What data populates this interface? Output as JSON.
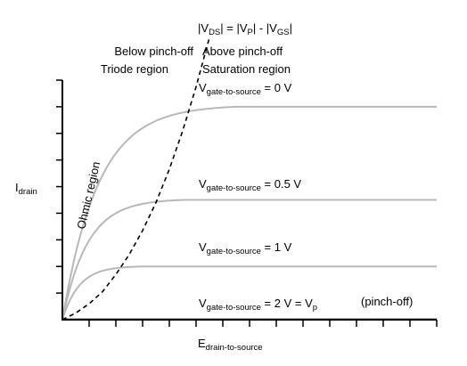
{
  "chart_data": {
    "type": "line",
    "title": "",
    "xlabel": "drain-to-source",
    "xlabel_prefix": "E",
    "ylabel": "drain",
    "ylabel_prefix": "I",
    "xlim": [
      0,
      14
    ],
    "ylim": [
      0,
      9
    ],
    "x_ticks": 14,
    "y_ticks": 9,
    "grid": false,
    "series": [
      {
        "label_prefix": "V",
        "label_sub": "gate-to-source",
        "label_value": " = 0 V",
        "pinch": 4.3,
        "level": 8.0,
        "curve": "saturating"
      },
      {
        "label_prefix": "V",
        "label_sub": "gate-to-source",
        "label_value": " = 0.5 V",
        "pinch": 3.0,
        "level": 4.5,
        "curve": "saturating"
      },
      {
        "label_prefix": "V",
        "label_sub": "gate-to-source",
        "label_value": " = 1 V",
        "pinch": 2.0,
        "level": 2.0,
        "curve": "saturating"
      },
      {
        "label_prefix": "V",
        "label_sub": "gate-to-source",
        "label_value": " = 2 V = V",
        "label_value_sub": "p",
        "label_extra": "(pinch-off)",
        "pinch": 0.0,
        "level": 0.0,
        "curve": "flat"
      }
    ],
    "boundary": {
      "style": "dashed",
      "x": [
        0,
        0.5,
        1,
        1.5,
        2,
        2.5,
        3,
        3.5,
        4,
        4.5,
        5,
        5.5
      ],
      "y": [
        0,
        0.25,
        0.6,
        1.05,
        1.7,
        2.45,
        3.35,
        4.4,
        5.65,
        7.1,
        8.75,
        10.6
      ]
    },
    "annotations": {
      "formula_parts": [
        "|V",
        "DS",
        "| = |V",
        "P",
        "| - |V",
        "GS",
        "|"
      ],
      "below_pinchoff": "Below pinch-off",
      "triode": "Triode region",
      "above_pinchoff": "Above pinch-off",
      "saturation": "Saturation region",
      "ohmic": "Ohmic region"
    },
    "colors": {
      "curve": "#b8b8b8",
      "axis": "#000000",
      "boundary": "#000000",
      "below_text": "#1f1fcf",
      "above_text": "#1f1fcf",
      "triode_text": "#3a9a3a",
      "saturation_text": "#3a9a3a"
    }
  }
}
